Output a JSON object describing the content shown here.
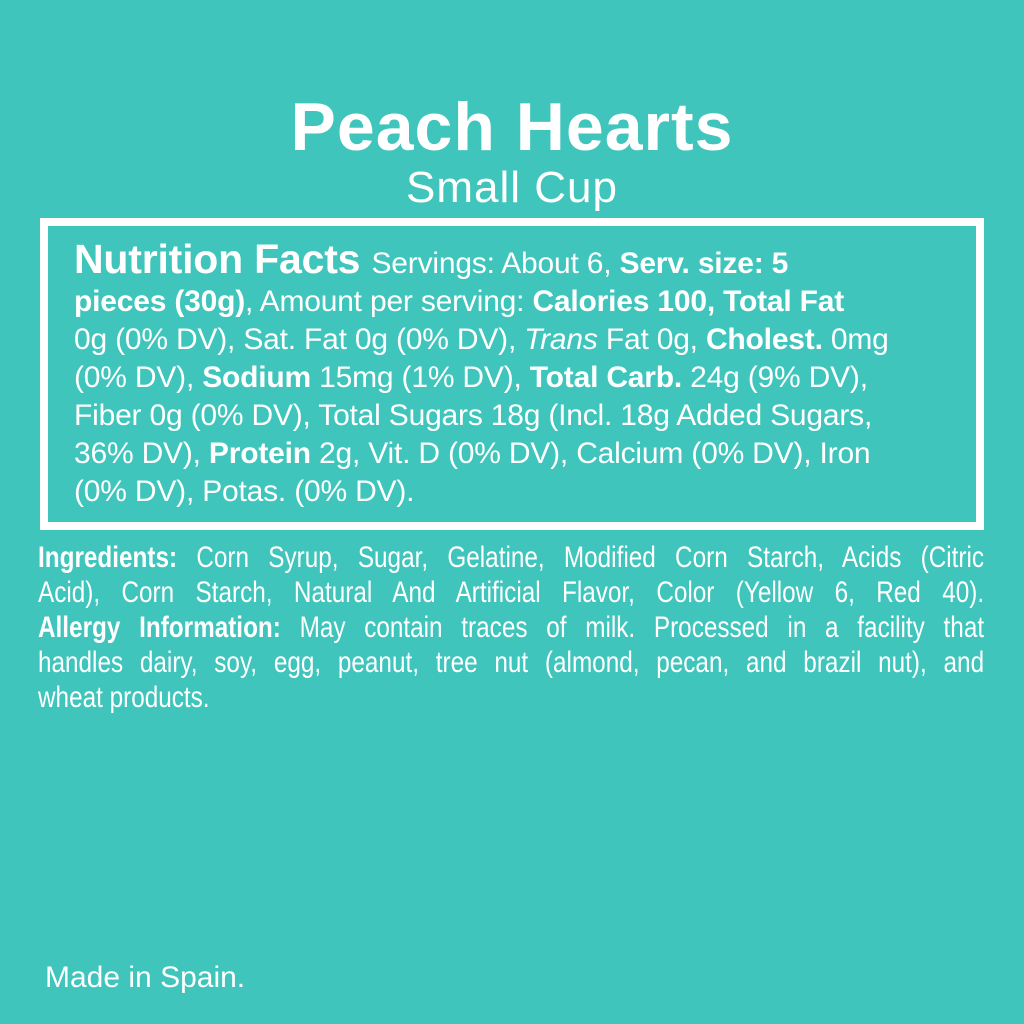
{
  "page": {
    "background_color": "#3FC5BB",
    "text_color": "#FFFFFF",
    "box_border_color": "#FFFFFF"
  },
  "header": {
    "title": "Peach Hearts",
    "subtitle": "Small Cup"
  },
  "nutrition_facts": {
    "lines": [
      [
        {
          "t": "Nutrition Facts ",
          "s": "h"
        },
        {
          "t": "Servings: About 6, ",
          "s": "r"
        },
        {
          "t": "Serv. size: 5",
          "s": "b"
        }
      ],
      [
        {
          "t": "pieces (30g)",
          "s": "b"
        },
        {
          "t": ", Amount per serving: ",
          "s": "r"
        },
        {
          "t": "Calories 100, Total Fat",
          "s": "b"
        }
      ],
      [
        {
          "t": "0g (0% DV), Sat. Fat 0g (0% DV), ",
          "s": "r"
        },
        {
          "t": "Trans",
          "s": "i"
        },
        {
          "t": " Fat 0g, ",
          "s": "r"
        },
        {
          "t": "Cholest.",
          "s": "b"
        },
        {
          "t": " 0mg",
          "s": "r"
        }
      ],
      [
        {
          "t": "(0% DV), ",
          "s": "r"
        },
        {
          "t": "Sodium",
          "s": "b"
        },
        {
          "t": " 15mg (1% DV), ",
          "s": "r"
        },
        {
          "t": "Total Carb.",
          "s": "b"
        },
        {
          "t": " 24g (9% DV),",
          "s": "r"
        }
      ],
      [
        {
          "t": "Fiber 0g (0% DV), Total Sugars 18g (Incl. 18g Added Sugars,",
          "s": "r"
        }
      ],
      [
        {
          "t": "36% DV), ",
          "s": "r"
        },
        {
          "t": "Protein",
          "s": "b"
        },
        {
          "t": " 2g, Vit. D (0% DV), Calcium (0% DV), Iron",
          "s": "r"
        }
      ],
      [
        {
          "t": "(0% DV), Potas. (0% DV).",
          "s": "r"
        }
      ]
    ]
  },
  "ingredients": {
    "lines": [
      [
        {
          "t": "Ingredients:",
          "s": "b"
        },
        {
          "t": " Corn Syrup, Sugar, Gelatine, Modified Corn Starch, Acids (Citric",
          "s": "r"
        }
      ],
      [
        {
          "t": "Acid), Corn Starch, Natural And Artificial Flavor, Color (Yellow 6, Red 40).",
          "s": "r"
        }
      ],
      [
        {
          "t": "Allergy Information:",
          "s": "b"
        },
        {
          "t": " May contain traces of milk. Processed in a facility that",
          "s": "r"
        }
      ],
      [
        {
          "t": "handles dairy, soy, egg, peanut, tree nut (almond, pecan, and brazil nut), and",
          "s": "r"
        }
      ],
      [
        {
          "t": "wheat products.",
          "s": "r"
        }
      ]
    ]
  },
  "footer": {
    "origin": "Made in Spain."
  }
}
